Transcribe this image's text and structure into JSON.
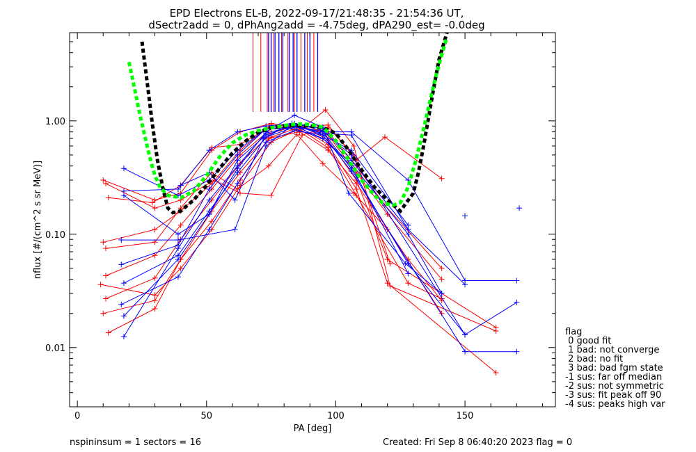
{
  "chart_data": {
    "type": "line",
    "title_lines": [
      "EPD Electrons EL-B, 2022-09-17/21:48:35 - 21:54:36 UT,",
      "dSectr2add = 0, dPhAng2add = -4.75deg, dPA290_est=  -0.0deg"
    ],
    "xlabel": "PA [deg]",
    "ylabel": "nflux [#/(cm^2 s sr MeV)]",
    "x_ticks": [
      "0",
      "50",
      "100",
      "150"
    ],
    "y_ticks": [
      "0.01",
      "0.10",
      "1.00"
    ],
    "xlim": [
      -3,
      185
    ],
    "ylim": [
      0.003,
      6.0
    ],
    "y_scale": "log",
    "grid": false,
    "colors": {
      "red": "#ff0000",
      "blue": "#0000ff",
      "green": "#00ff00",
      "black": "#000000"
    },
    "series": [
      {
        "color": "red",
        "x": [
          10,
          30,
          40,
          52,
          63,
          75,
          86,
          97,
          108,
          119,
          141
        ],
        "y": [
          0.3,
          0.2,
          0.23,
          0.55,
          0.8,
          0.95,
          0.88,
          0.92,
          0.45,
          0.72,
          0.31
        ]
      },
      {
        "color": "red",
        "x": [
          10,
          30,
          40,
          52,
          63,
          75,
          86,
          97,
          108,
          119,
          141
        ],
        "y": [
          0.085,
          0.11,
          0.16,
          0.28,
          0.55,
          0.92,
          0.88,
          0.8,
          0.4,
          0.18,
          0.05
        ]
      },
      {
        "color": "red",
        "x": [
          11,
          30,
          40,
          52,
          63,
          75,
          86,
          97,
          108,
          120,
          141
        ],
        "y": [
          0.043,
          0.065,
          0.12,
          0.25,
          0.5,
          0.85,
          0.9,
          0.75,
          0.35,
          0.15,
          0.04
        ]
      },
      {
        "color": "red",
        "x": [
          11,
          30,
          40,
          52,
          63,
          75,
          86,
          97,
          108,
          120,
          162
        ],
        "y": [
          0.027,
          0.041,
          0.09,
          0.2,
          0.42,
          0.78,
          0.92,
          0.68,
          0.3,
          0.06,
          0.015
        ]
      },
      {
        "color": "red",
        "x": [
          12,
          30,
          40,
          52,
          63,
          75,
          86,
          97,
          108,
          120,
          162
        ],
        "y": [
          0.0135,
          0.022,
          0.06,
          0.16,
          0.35,
          0.72,
          0.88,
          0.62,
          0.25,
          0.037,
          0.006
        ]
      },
      {
        "color": "red",
        "x": [
          9,
          30,
          40,
          52,
          63,
          75,
          86,
          97,
          108,
          128,
          141
        ],
        "y": [
          0.036,
          0.029,
          0.05,
          0.11,
          0.27,
          0.65,
          0.85,
          0.58,
          0.22,
          0.037,
          0.027
        ]
      },
      {
        "color": "red",
        "x": [
          10,
          30,
          40,
          52,
          63,
          74,
          86,
          97,
          108,
          128,
          141
        ],
        "y": [
          0.02,
          0.026,
          0.06,
          0.13,
          0.3,
          0.7,
          0.8,
          0.55,
          0.28,
          0.06,
          0.026
        ]
      },
      {
        "color": "red",
        "x": [
          12,
          29,
          40,
          52,
          63,
          75,
          86,
          96,
          107,
          121,
          162
        ],
        "y": [
          0.21,
          0.19,
          0.27,
          0.58,
          0.62,
          0.9,
          0.82,
          1.25,
          0.6,
          0.035,
          0.014
        ]
      },
      {
        "color": "red",
        "x": [
          11,
          30,
          40,
          52,
          62,
          74,
          85,
          95,
          107,
          120,
          141
        ],
        "y": [
          0.075,
          0.085,
          0.17,
          0.35,
          0.25,
          0.4,
          0.76,
          0.42,
          0.23,
          0.11,
          0.02
        ]
      },
      {
        "color": "red",
        "x": [
          11,
          30,
          40,
          53,
          63,
          75,
          87,
          97,
          107,
          121
        ],
        "y": [
          0.28,
          0.17,
          0.2,
          0.3,
          0.23,
          0.22,
          0.75,
          0.88,
          0.5,
          0.055
        ]
      },
      {
        "color": "blue",
        "x": [
          18,
          39,
          51,
          62,
          73,
          84,
          95,
          106,
          128,
          150,
          170
        ],
        "y": [
          0.38,
          0.22,
          0.3,
          0.55,
          0.85,
          0.9,
          0.8,
          0.8,
          0.3,
          0.039,
          0.039
        ]
      },
      {
        "color": "blue",
        "x": [
          18,
          39,
          51,
          62,
          73,
          84,
          95,
          106,
          128,
          150
        ],
        "y": [
          0.24,
          0.25,
          0.55,
          0.8,
          0.9,
          0.95,
          0.85,
          0.45,
          0.11,
          0.036
        ]
      },
      {
        "color": "blue",
        "x": [
          18,
          39,
          51,
          62,
          73,
          84,
          95,
          106,
          128
        ],
        "y": [
          0.22,
          0.1,
          0.15,
          0.45,
          0.75,
          0.92,
          0.75,
          0.55,
          0.12
        ]
      },
      {
        "color": "blue",
        "x": [
          17,
          39,
          51,
          62,
          73,
          84,
          95,
          106,
          128
        ],
        "y": [
          0.054,
          0.08,
          0.25,
          0.5,
          0.85,
          0.85,
          0.7,
          0.4,
          0.045
        ]
      },
      {
        "color": "blue",
        "x": [
          18,
          39,
          51,
          62,
          73,
          84,
          95,
          106,
          128,
          150
        ],
        "y": [
          0.037,
          0.065,
          0.16,
          0.35,
          0.72,
          0.88,
          0.8,
          0.38,
          0.055,
          0.013
        ]
      },
      {
        "color": "blue",
        "x": [
          17,
          39,
          51,
          62,
          73,
          84,
          95,
          106,
          150,
          170
        ],
        "y": [
          0.024,
          0.042,
          0.11,
          0.28,
          0.65,
          0.82,
          0.75,
          0.36,
          0.0092,
          0.0092
        ]
      },
      {
        "color": "blue",
        "x": [
          18,
          39,
          51,
          62,
          73,
          84,
          95,
          106,
          128,
          141
        ],
        "y": [
          0.0125,
          0.075,
          0.2,
          0.4,
          0.78,
          0.9,
          0.7,
          0.42,
          0.1,
          0.03
        ]
      },
      {
        "color": "blue",
        "x": [
          17,
          39,
          61,
          73,
          84,
          95,
          106,
          150,
          170
        ],
        "y": [
          0.089,
          0.089,
          0.11,
          0.6,
          0.95,
          0.82,
          0.5,
          0.013,
          0.025
        ]
      },
      {
        "color": "blue",
        "x": [
          18,
          39,
          51,
          62,
          73,
          84,
          95,
          105,
          127,
          141
        ],
        "y": [
          0.019,
          0.06,
          0.15,
          0.38,
          0.8,
          1.12,
          0.88,
          0.23,
          0.055,
          0.03
        ]
      },
      {
        "color": "blue",
        "x": [
          40,
          51,
          61,
          72,
          83,
          94,
          106,
          128
        ],
        "y": [
          0.27,
          0.35,
          0.2,
          0.7,
          0.95,
          0.78,
          0.75,
          0.11
        ]
      }
    ],
    "lone_points": [
      {
        "color": "blue",
        "x": 150,
        "y": 0.145
      },
      {
        "color": "blue",
        "x": 171,
        "y": 0.17
      }
    ],
    "fit_curves": [
      {
        "color": "black",
        "x": [
          25,
          27,
          29,
          31,
          33,
          35,
          37,
          40,
          45,
          50,
          55,
          60,
          65,
          70,
          75,
          80,
          85,
          90,
          95,
          100,
          105,
          110,
          115,
          120,
          125,
          130,
          132,
          134,
          136,
          138,
          140,
          142,
          143
        ],
        "y": [
          5.0,
          2.2,
          0.95,
          0.45,
          0.26,
          0.17,
          0.155,
          0.16,
          0.2,
          0.27,
          0.38,
          0.52,
          0.66,
          0.79,
          0.87,
          0.9,
          0.91,
          0.9,
          0.87,
          0.78,
          0.55,
          0.37,
          0.26,
          0.2,
          0.16,
          0.23,
          0.35,
          0.6,
          1.1,
          2.0,
          3.5,
          5.0,
          6.0
        ]
      },
      {
        "color": "green",
        "x": [
          20,
          22,
          24,
          26,
          28,
          30,
          32,
          35,
          40,
          45,
          50,
          55,
          60,
          65,
          70,
          75,
          80,
          85,
          90,
          95,
          100,
          105,
          110,
          115,
          118,
          122,
          125,
          128,
          131,
          134,
          137,
          139,
          141,
          143
        ],
        "y": [
          3.3,
          2.0,
          1.2,
          0.75,
          0.48,
          0.33,
          0.26,
          0.22,
          0.21,
          0.24,
          0.33,
          0.48,
          0.64,
          0.75,
          0.82,
          0.87,
          0.91,
          0.94,
          0.93,
          0.88,
          0.67,
          0.45,
          0.3,
          0.22,
          0.19,
          0.18,
          0.19,
          0.26,
          0.45,
          0.85,
          1.7,
          2.6,
          3.8,
          5.5
        ]
      }
    ],
    "vertical_markers": {
      "y_bottom": 1.2,
      "y_top": 6.0,
      "red_x": [
        68,
        71,
        73.5,
        76,
        79,
        81.5,
        84,
        86.5,
        89,
        91.5
      ],
      "blue_x": [
        74,
        75,
        76.5,
        78,
        79.5,
        82,
        83.5,
        85,
        88,
        90,
        93
      ]
    },
    "legend": {
      "title": "flag",
      "entries": [
        " 0 good fit",
        " 1 bad: not converge",
        " 2 bad: no fit",
        " 3 bad: bad fgm state",
        "-1 sus: far off median",
        "-2 sus: not symmetric",
        "-3 sus: fit peak off 90",
        "-4 sus: peaks high var"
      ]
    },
    "footer": {
      "left": "nspininsum =  1  sectors = 16",
      "right": "Created: Fri Sep  8 06:40:20 2023   flag = 0"
    }
  }
}
